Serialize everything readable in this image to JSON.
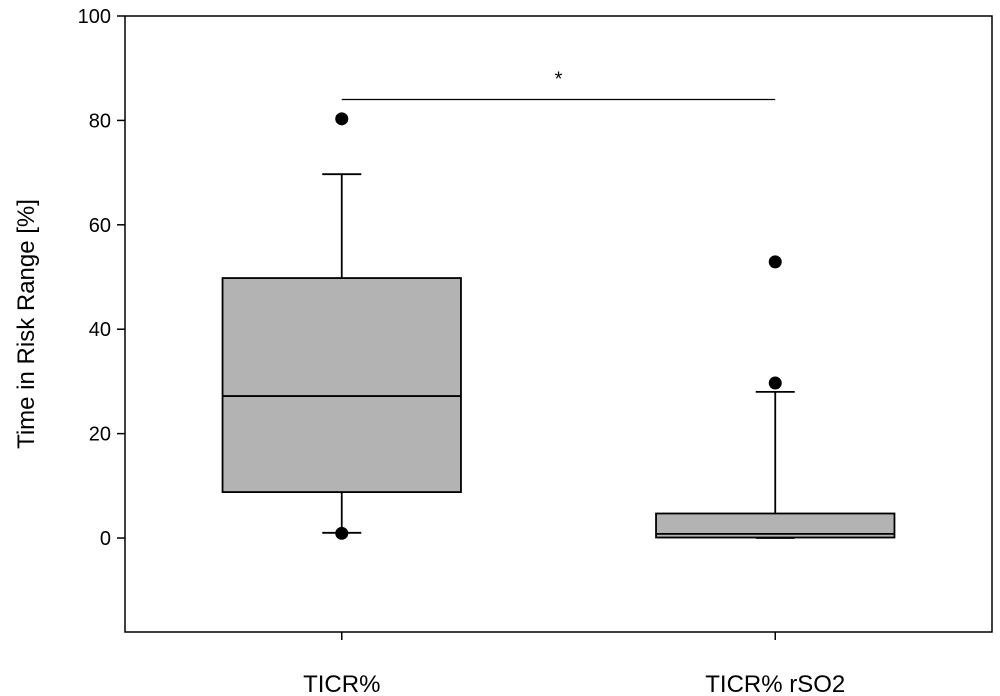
{
  "chart_data": {
    "type": "boxplot",
    "title": "",
    "xlabel": "",
    "ylabel": "Time in Risk Range [%]",
    "ylim": [
      -18,
      100
    ],
    "yticks": [
      0,
      20,
      40,
      60,
      80,
      100
    ],
    "grid": false,
    "categories": [
      "TICR%",
      "TICR% rSO2"
    ],
    "box_color": "#b3b3b3",
    "boxes": [
      {
        "category": "TICR%",
        "whisker_low": 1,
        "q1": 8.8,
        "median": 27.2,
        "q3": 49.8,
        "whisker_high": 69.7,
        "outliers": [
          80.3,
          0.9
        ]
      },
      {
        "category": "TICR% rSO2",
        "whisker_low": 0,
        "q1": 0.1,
        "median": 0.8,
        "q3": 4.7,
        "whisker_high": 28,
        "outliers": [
          52.9,
          29.7
        ]
      }
    ],
    "significance": {
      "between": [
        "TICR%",
        "TICR% rSO2"
      ],
      "y": 84,
      "label": "*"
    }
  }
}
